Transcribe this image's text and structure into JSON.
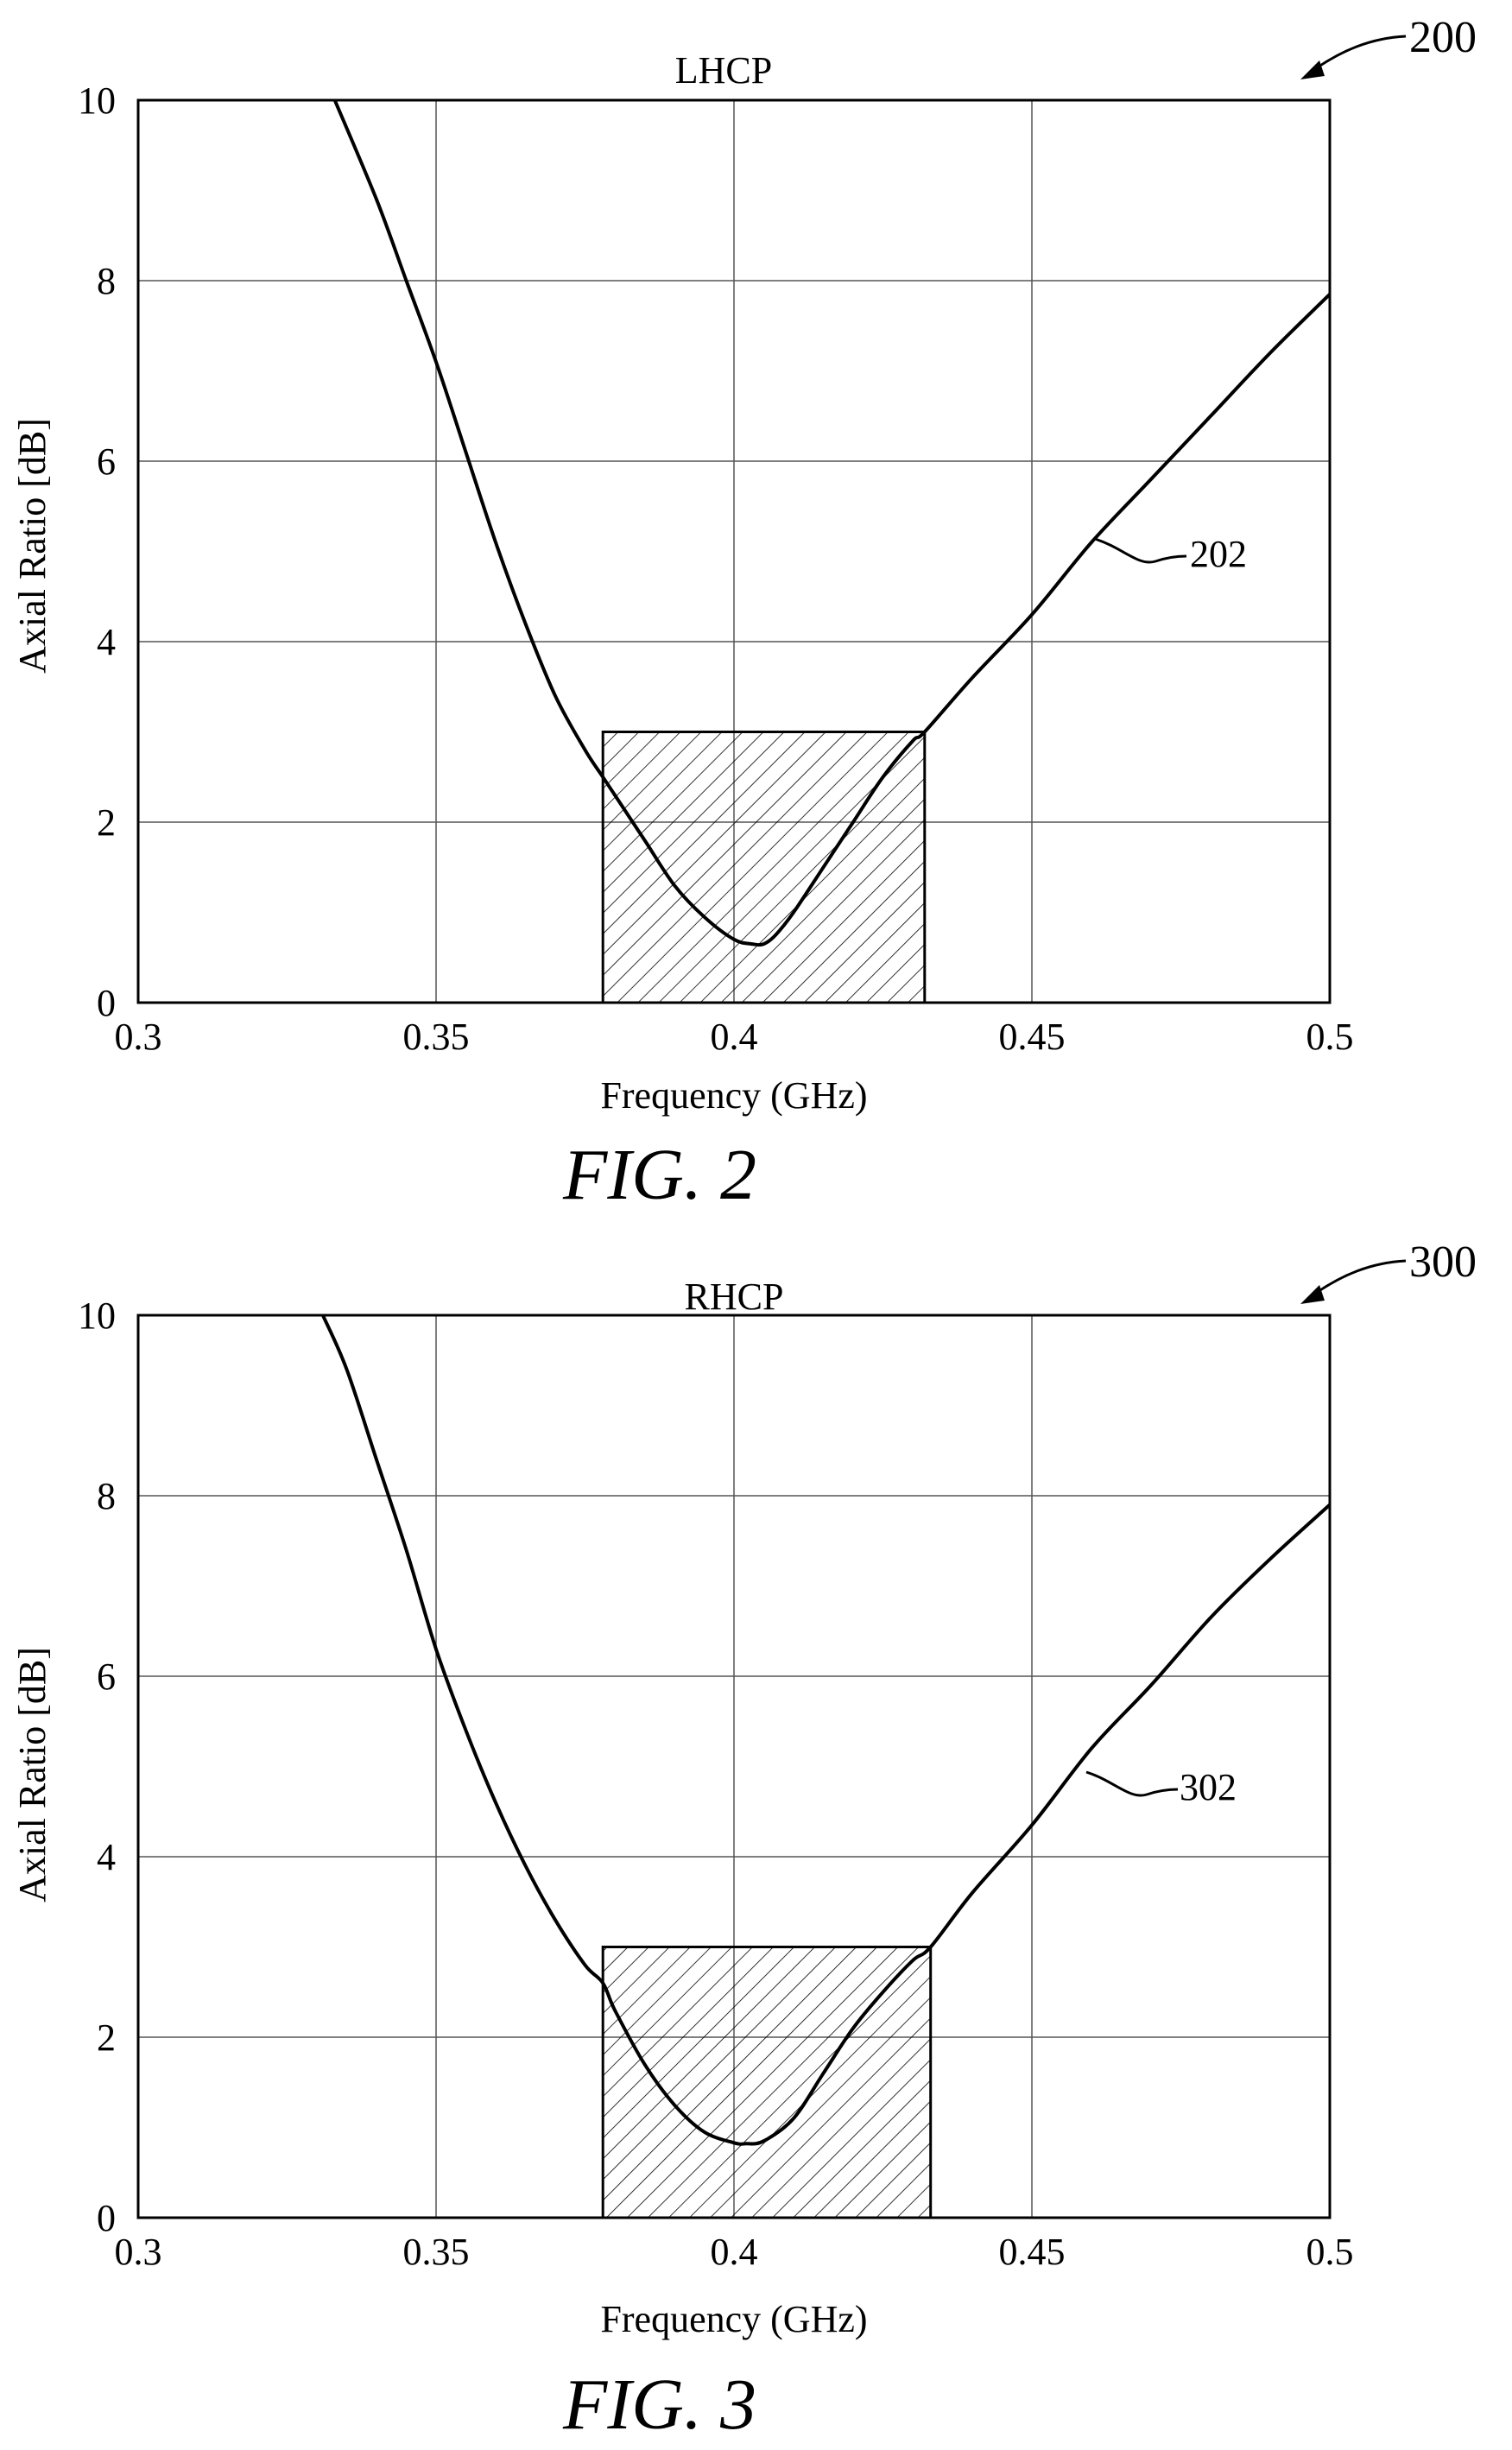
{
  "figures": [
    {
      "ref": "200",
      "caption": "FIG. 2",
      "curve_ref": "202"
    },
    {
      "ref": "300",
      "caption": "FIG. 3",
      "curve_ref": "302"
    }
  ],
  "chart_data": [
    {
      "type": "line",
      "title": "LHCP",
      "xlabel": "Frequency (GHz)",
      "ylabel": "Axial Ratio [dB]",
      "xlim": [
        0.3,
        0.5
      ],
      "ylim": [
        0,
        10
      ],
      "xticks": [
        "0.3",
        "0.35",
        "0.4",
        "0.45",
        "0.5"
      ],
      "yticks": [
        "0",
        "2",
        "4",
        "6",
        "8",
        "10"
      ],
      "grid": true,
      "highlight_band": {
        "x": [
          0.378,
          0.432
        ],
        "y": [
          0,
          3
        ],
        "fill": "hatched"
      },
      "series": [
        {
          "x": [
            0.333,
            0.34,
            0.345,
            0.35,
            0.355,
            0.36,
            0.365,
            0.37,
            0.375,
            0.378,
            0.38,
            0.385,
            0.39,
            0.395,
            0.4,
            0.403,
            0.405,
            0.407,
            0.41,
            0.415,
            0.42,
            0.425,
            0.43,
            0.432,
            0.44,
            0.45,
            0.46,
            0.47,
            0.48,
            0.49,
            0.5
          ],
          "y": [
            10.0,
            8.9,
            8.0,
            7.1,
            6.1,
            5.1,
            4.2,
            3.4,
            2.8,
            2.5,
            2.3,
            1.8,
            1.3,
            0.95,
            0.7,
            0.65,
            0.65,
            0.75,
            1.0,
            1.5,
            2.0,
            2.5,
            2.9,
            3.0,
            3.6,
            4.3,
            5.1,
            5.8,
            6.5,
            7.2,
            7.85
          ]
        }
      ]
    },
    {
      "type": "line",
      "title": "RHCP",
      "xlabel": "Frequency (GHz)",
      "ylabel": "Axial Ratio [dB]",
      "xlim": [
        0.3,
        0.5
      ],
      "ylim": [
        0,
        10
      ],
      "xticks": [
        "0.3",
        "0.35",
        "0.4",
        "0.45",
        "0.5"
      ],
      "yticks": [
        "0",
        "2",
        "4",
        "6",
        "8",
        "10"
      ],
      "grid": true,
      "highlight_band": {
        "x": [
          0.378,
          0.433
        ],
        "y": [
          0,
          3
        ],
        "fill": "hatched"
      },
      "series": [
        {
          "x": [
            0.331,
            0.335,
            0.34,
            0.345,
            0.35,
            0.355,
            0.36,
            0.365,
            0.37,
            0.375,
            0.378,
            0.38,
            0.385,
            0.39,
            0.395,
            0.4,
            0.402,
            0.405,
            0.41,
            0.415,
            0.42,
            0.425,
            0.43,
            0.433,
            0.44,
            0.45,
            0.46,
            0.47,
            0.48,
            0.49,
            0.5
          ],
          "y": [
            10.0,
            9.4,
            8.4,
            7.4,
            6.3,
            5.4,
            4.6,
            3.9,
            3.3,
            2.8,
            2.6,
            2.3,
            1.7,
            1.25,
            0.95,
            0.83,
            0.82,
            0.85,
            1.1,
            1.6,
            2.1,
            2.5,
            2.85,
            3.0,
            3.6,
            4.35,
            5.2,
            5.9,
            6.65,
            7.3,
            7.9
          ]
        }
      ]
    }
  ]
}
